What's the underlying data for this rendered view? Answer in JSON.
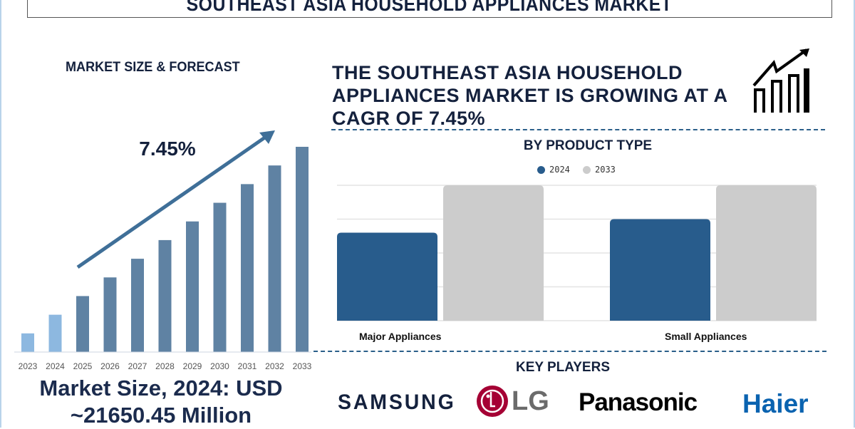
{
  "title": "SOUTHEAST ASIA HOUSEHOLD APPLIANCES MARKET",
  "left_panel": {
    "heading": "MARKET SIZE & FORECAST",
    "market_size_line1": "Market Size, 2024: USD",
    "market_size_line2": "~21650.45 Million"
  },
  "headline": "THE SOUTHEAST ASIA HOUSEHOLD APPLIANCES MARKET IS GROWING AT A CAGR OF 7.45%",
  "key_players": {
    "heading": "KEY PLAYERS",
    "logos": [
      "SAMSUNG",
      "LG",
      "Panasonic",
      "Haier"
    ]
  },
  "colors": {
    "navy": "#14213d",
    "bar_actual": "#8db8e0",
    "bar_forecast": "#5f82a3",
    "series_2024": "#285c8c",
    "series_2033": "#cccccc",
    "haier": "#0a63b0",
    "lg": "#a50034"
  },
  "icons": [
    "growth-chart-icon",
    "trend-arrow-icon"
  ],
  "chart_data": [
    {
      "type": "bar",
      "title": "",
      "annotation": "7.45%",
      "categories": [
        "2023",
        "2024",
        "2025",
        "2026",
        "2027",
        "2028",
        "2029",
        "2030",
        "2031",
        "2032",
        "2033"
      ],
      "values": [
        1,
        2,
        3,
        4,
        5,
        6,
        7,
        8,
        9,
        10,
        11
      ],
      "highlight_categories": [
        "2023",
        "2024"
      ],
      "xlabel": "",
      "ylabel": "",
      "ylim": [
        0,
        11
      ],
      "grid": false
    },
    {
      "type": "bar",
      "title": "BY PRODUCT TYPE",
      "categories": [
        "Major Appliances",
        "Small Appliances"
      ],
      "series": [
        {
          "name": "2024",
          "values": [
            2.6,
            3.0
          ]
        },
        {
          "name": "2033",
          "values": [
            4.0,
            4.0
          ]
        }
      ],
      "ylim": [
        0,
        4
      ],
      "grid": true,
      "legend": "top-center",
      "xlabel": "",
      "ylabel": ""
    }
  ]
}
